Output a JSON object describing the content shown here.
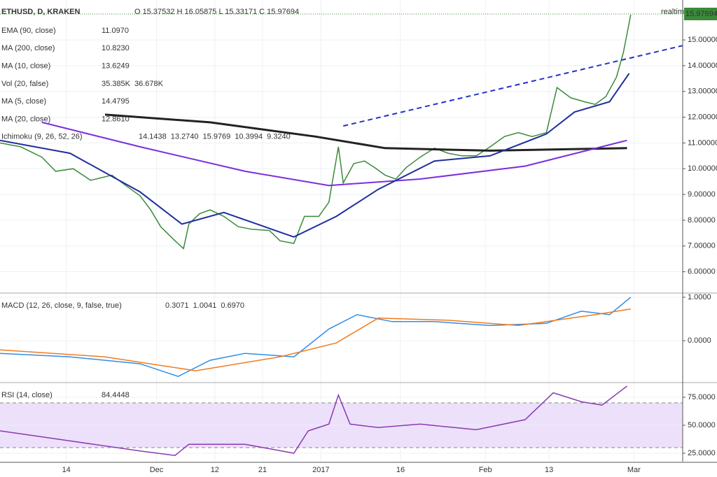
{
  "chart_data": [
    {
      "type": "line",
      "title": "ETHUSD, D, KRAKEN",
      "ohlc": "O 15.37532 H 16.05875 L 15.33171 C 15.97694",
      "realtime": "realtime",
      "last_price": "15.97694",
      "xlim": [
        0.5,
        129.2
      ],
      "ylim": [
        5.2,
        16.55
      ],
      "yticks": [
        {
          "value": 6,
          "label": "6.00000"
        },
        {
          "value": 7,
          "label": "7.00000"
        },
        {
          "value": 8,
          "label": "8.00000"
        },
        {
          "value": 9,
          "label": "9.00000"
        },
        {
          "value": 10,
          "label": "10.00000"
        },
        {
          "value": 11,
          "label": "11.00000"
        },
        {
          "value": 12,
          "label": "12.00000"
        },
        {
          "value": 13,
          "label": "13.00000"
        },
        {
          "value": 14,
          "label": "14.00000"
        },
        {
          "value": 15,
          "label": "15.00000"
        }
      ],
      "legend_rows": [
        {
          "label": "EMA (90, close)",
          "readouts": [
            "11.0970"
          ]
        },
        {
          "label": "MA (200, close)",
          "readouts": [
            "10.8230"
          ]
        },
        {
          "label": "MA (10, close)",
          "readouts": [
            "13.6249"
          ]
        },
        {
          "label": "Vol (20, false)",
          "readouts": [
            "35.385K",
            "36.678K"
          ]
        },
        {
          "label": "MA (5, close)",
          "readouts": [
            "14.4795"
          ]
        },
        {
          "label": "MA (20, close)",
          "readouts": [
            "12.8610"
          ]
        },
        {
          "label": "Ichimoku (9, 26, 52, 26)",
          "readouts": [
            "14.1438",
            "13.2740",
            "15.9769",
            "10.3994",
            "9.3240"
          ]
        }
      ],
      "series": [
        {
          "color": "#3a8a3a",
          "x": [
            0.5,
            4.4,
            8.4,
            11,
            14.3,
            17.6,
            21.6,
            24.2,
            26.9,
            28.9,
            30.8,
            33.5,
            35.1,
            36.1,
            38.1,
            40.1,
            42.7,
            45.4,
            48,
            51.3,
            53.3,
            55.9,
            57.9,
            60.6,
            62.5,
            64.3,
            65.2,
            67.2,
            69.2,
            71.1,
            73.1,
            75.1,
            77.1,
            79.7,
            82.4,
            85,
            87.6,
            90.3,
            92.9,
            95.6,
            98.2,
            100.8,
            103.5,
            105.5,
            108.1,
            110.7,
            112.7,
            114.7,
            116.7,
            118,
            119.4
          ],
          "values": [
            11.0,
            10.85,
            10.45,
            9.9,
            10.0,
            9.55,
            9.75,
            9.35,
            8.95,
            8.4,
            7.75,
            7.2,
            6.9,
            7.85,
            8.25,
            8.4,
            8.15,
            7.75,
            7.65,
            7.6,
            7.2,
            7.1,
            8.15,
            8.15,
            8.7,
            10.85,
            9.45,
            10.2,
            10.3,
            10.05,
            9.75,
            9.6,
            10.05,
            10.45,
            10.8,
            10.6,
            10.5,
            10.5,
            10.85,
            11.25,
            11.4,
            11.25,
            11.4,
            13.15,
            12.75,
            12.6,
            12.5,
            12.8,
            13.55,
            14.5,
            15.97694
          ]
        },
        {
          "color": "#222222",
          "width": 3,
          "x": [
            20.3,
            40.1,
            59.9,
            73.1,
            92.9,
            118.7
          ],
          "values": [
            12.1,
            11.8,
            11.25,
            10.8,
            10.7,
            10.8
          ]
        },
        {
          "color": "#7b2ee0",
          "width": 2,
          "x": [
            8.4,
            26.9,
            46.7,
            62.5,
            79.7,
            99.5,
            118.7
          ],
          "values": [
            11.8,
            10.85,
            9.9,
            9.35,
            9.6,
            10.1,
            11.1
          ]
        },
        {
          "color": "#1f2f9e",
          "width": 2,
          "x": [
            0.5,
            13.7,
            26.9,
            34.8,
            42.7,
            55.9,
            63.9,
            71.8,
            82.4,
            92.9,
            103.5,
            108.8,
            115.4,
            119.1
          ],
          "values": [
            11.1,
            10.6,
            9.1,
            7.85,
            8.3,
            7.35,
            8.15,
            9.2,
            10.3,
            10.5,
            11.35,
            12.2,
            12.6,
            13.7
          ]
        },
        {
          "color": "#2233cc",
          "width": 2,
          "dashed": true,
          "x": [
            65.2,
            129.2
          ],
          "values": [
            11.66,
            14.78
          ]
        }
      ]
    },
    {
      "type": "line",
      "legend_rows": [
        {
          "label": "MACD (12, 26, close, 9, false, true)",
          "readouts": [
            "0.3071",
            "1.0041",
            "0.6970"
          ]
        }
      ],
      "xlim": [
        0.5,
        129.2
      ],
      "ylim": [
        -0.93,
        1.08
      ],
      "yticks": [
        {
          "value": 0,
          "label": "0.0000"
        },
        {
          "value": 1,
          "label": "1.0000"
        }
      ],
      "series": [
        {
          "color": "#2f8ee8",
          "x": [
            0.5,
            13.7,
            26.9,
            34.1,
            40.1,
            46.7,
            55.9,
            62.5,
            67.8,
            74.4,
            82.4,
            92.9,
            103.5,
            110.1,
            115.4,
            119.4
          ],
          "values": [
            -0.29,
            -0.37,
            -0.53,
            -0.82,
            -0.45,
            -0.29,
            -0.37,
            0.27,
            0.6,
            0.44,
            0.44,
            0.35,
            0.4,
            0.68,
            0.6,
            1.0
          ]
        },
        {
          "color": "#f07b1e",
          "x": [
            0.5,
            20.3,
            37.4,
            53.3,
            63.9,
            71.8,
            85,
            98.2,
            112.7,
            119.4
          ],
          "values": [
            -0.21,
            -0.37,
            -0.69,
            -0.37,
            -0.05,
            0.52,
            0.47,
            0.35,
            0.6,
            0.73
          ]
        }
      ]
    },
    {
      "type": "line",
      "legend_rows": [
        {
          "label": "RSI (14, close)",
          "readouts": [
            "84.4448"
          ]
        }
      ],
      "xlim": [
        0.5,
        129.2
      ],
      "ylim": [
        17.5,
        87.5
      ],
      "band": [
        30,
        70
      ],
      "band_color": "#ece0fb",
      "yticks": [
        {
          "value": 25,
          "label": "25.0000"
        },
        {
          "value": 50,
          "label": "50.0000"
        },
        {
          "value": 75,
          "label": "75.0000"
        }
      ],
      "xticks": [
        {
          "value": 13,
          "label": "14"
        },
        {
          "value": 30,
          "label": "Dec"
        },
        {
          "value": 41,
          "label": "12"
        },
        {
          "value": 50,
          "label": "21"
        },
        {
          "value": 61,
          "label": "2017"
        },
        {
          "value": 76,
          "label": "16"
        },
        {
          "value": 92,
          "label": "Feb"
        },
        {
          "value": 104,
          "label": "13"
        },
        {
          "value": 120,
          "label": "Mar"
        }
      ],
      "series": [
        {
          "color": "#8a3ab0",
          "x": [
            0.5,
            13.7,
            26.9,
            33.5,
            36.1,
            46.7,
            55.9,
            58.6,
            62.5,
            64.3,
            66.5,
            71.8,
            79.7,
            90.3,
            99.5,
            104.8,
            110.1,
            114,
            118.7
          ],
          "values": [
            45,
            36,
            27,
            23,
            33,
            33,
            25,
            45,
            51,
            77,
            51,
            48,
            51,
            46,
            55,
            79,
            71,
            68,
            85
          ]
        }
      ]
    }
  ]
}
